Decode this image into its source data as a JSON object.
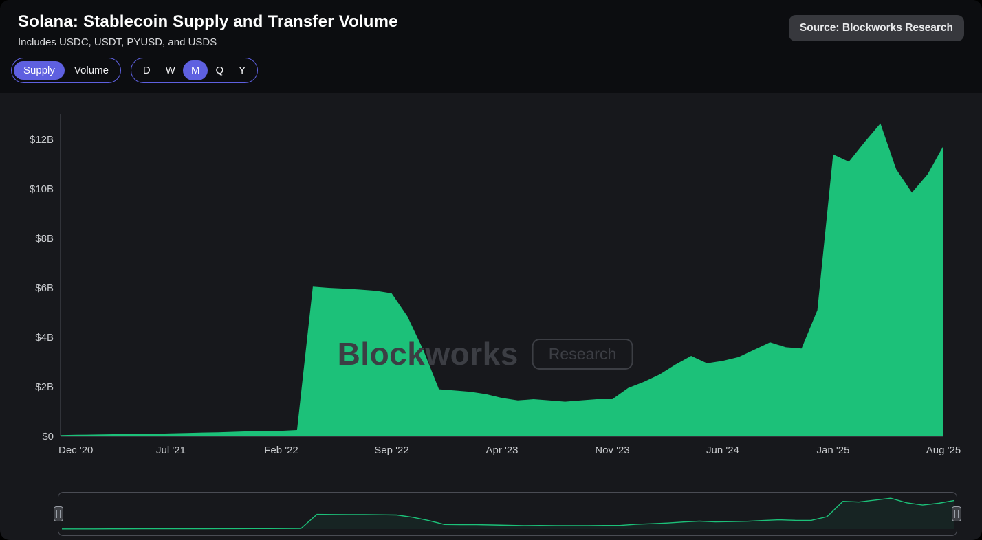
{
  "header": {
    "title": "Solana: Stablecoin Supply and Transfer Volume",
    "subtitle": "Includes USDC, USDT, PYUSD, and USDS",
    "source_badge": "Source: Blockworks Research"
  },
  "controls": {
    "metric_toggle": {
      "options": [
        "Supply",
        "Volume"
      ],
      "selected": "Supply"
    },
    "interval_toggle": {
      "options": [
        "D",
        "W",
        "M",
        "Q",
        "Y"
      ],
      "selected": "M"
    }
  },
  "watermark": {
    "brand": "Blockworks",
    "tag": "Research"
  },
  "colors": {
    "accent_purple": "#5e60e0",
    "series_green": "#1cc179",
    "axis_text": "#c9cbce",
    "axis_line": "#4b4e56",
    "watermark": "#3c3e44",
    "background": "#17181c",
    "header_background": "#0c0d10"
  },
  "chart_data": {
    "type": "area",
    "title": "Solana: Stablecoin Supply and Transfer Volume",
    "series_name": "Stablecoin Supply",
    "unit": "USD billions",
    "grid": false,
    "legend": "none",
    "ylim": [
      0,
      13
    ],
    "y_tick_values": [
      0,
      2,
      4,
      6,
      8,
      10,
      12
    ],
    "y_tick_labels": [
      "$0",
      "$2B",
      "$4B",
      "$6B",
      "$8B",
      "$10B",
      "$12B"
    ],
    "x_tick_indices": [
      0,
      7,
      14,
      21,
      28,
      35,
      42,
      49,
      56
    ],
    "x_tick_labels": [
      "Dec '20",
      "Jul '21",
      "Feb '22",
      "Sep '22",
      "Apr '23",
      "Nov '23",
      "Jun '24",
      "Jan '25",
      "Aug '25"
    ],
    "x": [
      "Dec '20",
      "Jan '21",
      "Feb '21",
      "Mar '21",
      "Apr '21",
      "May '21",
      "Jun '21",
      "Jul '21",
      "Aug '21",
      "Sep '21",
      "Oct '21",
      "Nov '21",
      "Dec '21",
      "Jan '22",
      "Feb '22",
      "Mar '22",
      "Apr '22",
      "May '22",
      "Jun '22",
      "Jul '22",
      "Aug '22",
      "Sep '22",
      "Oct '22",
      "Nov '22",
      "Dec '22",
      "Jan '23",
      "Feb '23",
      "Mar '23",
      "Apr '23",
      "May '23",
      "Jun '23",
      "Jul '23",
      "Aug '23",
      "Sep '23",
      "Oct '23",
      "Nov '23",
      "Dec '23",
      "Jan '24",
      "Feb '24",
      "Mar '24",
      "Apr '24",
      "May '24",
      "Jun '24",
      "Jul '24",
      "Aug '24",
      "Sep '24",
      "Oct '24",
      "Nov '24",
      "Dec '24",
      "Jan '25",
      "Feb '25",
      "Mar '25",
      "Apr '25",
      "May '25",
      "Jun '25",
      "Jul '25",
      "Aug '25"
    ],
    "values": [
      0.05,
      0.06,
      0.07,
      0.08,
      0.09,
      0.1,
      0.1,
      0.12,
      0.13,
      0.15,
      0.16,
      0.18,
      0.2,
      0.2,
      0.22,
      0.25,
      6.05,
      6.0,
      5.97,
      5.93,
      5.88,
      5.78,
      4.85,
      3.5,
      1.9,
      1.85,
      1.8,
      1.7,
      1.55,
      1.45,
      1.5,
      1.45,
      1.4,
      1.45,
      1.5,
      1.5,
      1.95,
      2.2,
      2.5,
      2.9,
      3.25,
      2.95,
      3.05,
      3.2,
      3.5,
      3.8,
      3.6,
      3.55,
      5.1,
      11.4,
      11.1,
      11.9,
      12.65,
      10.8,
      9.85,
      10.6,
      11.75
    ]
  }
}
